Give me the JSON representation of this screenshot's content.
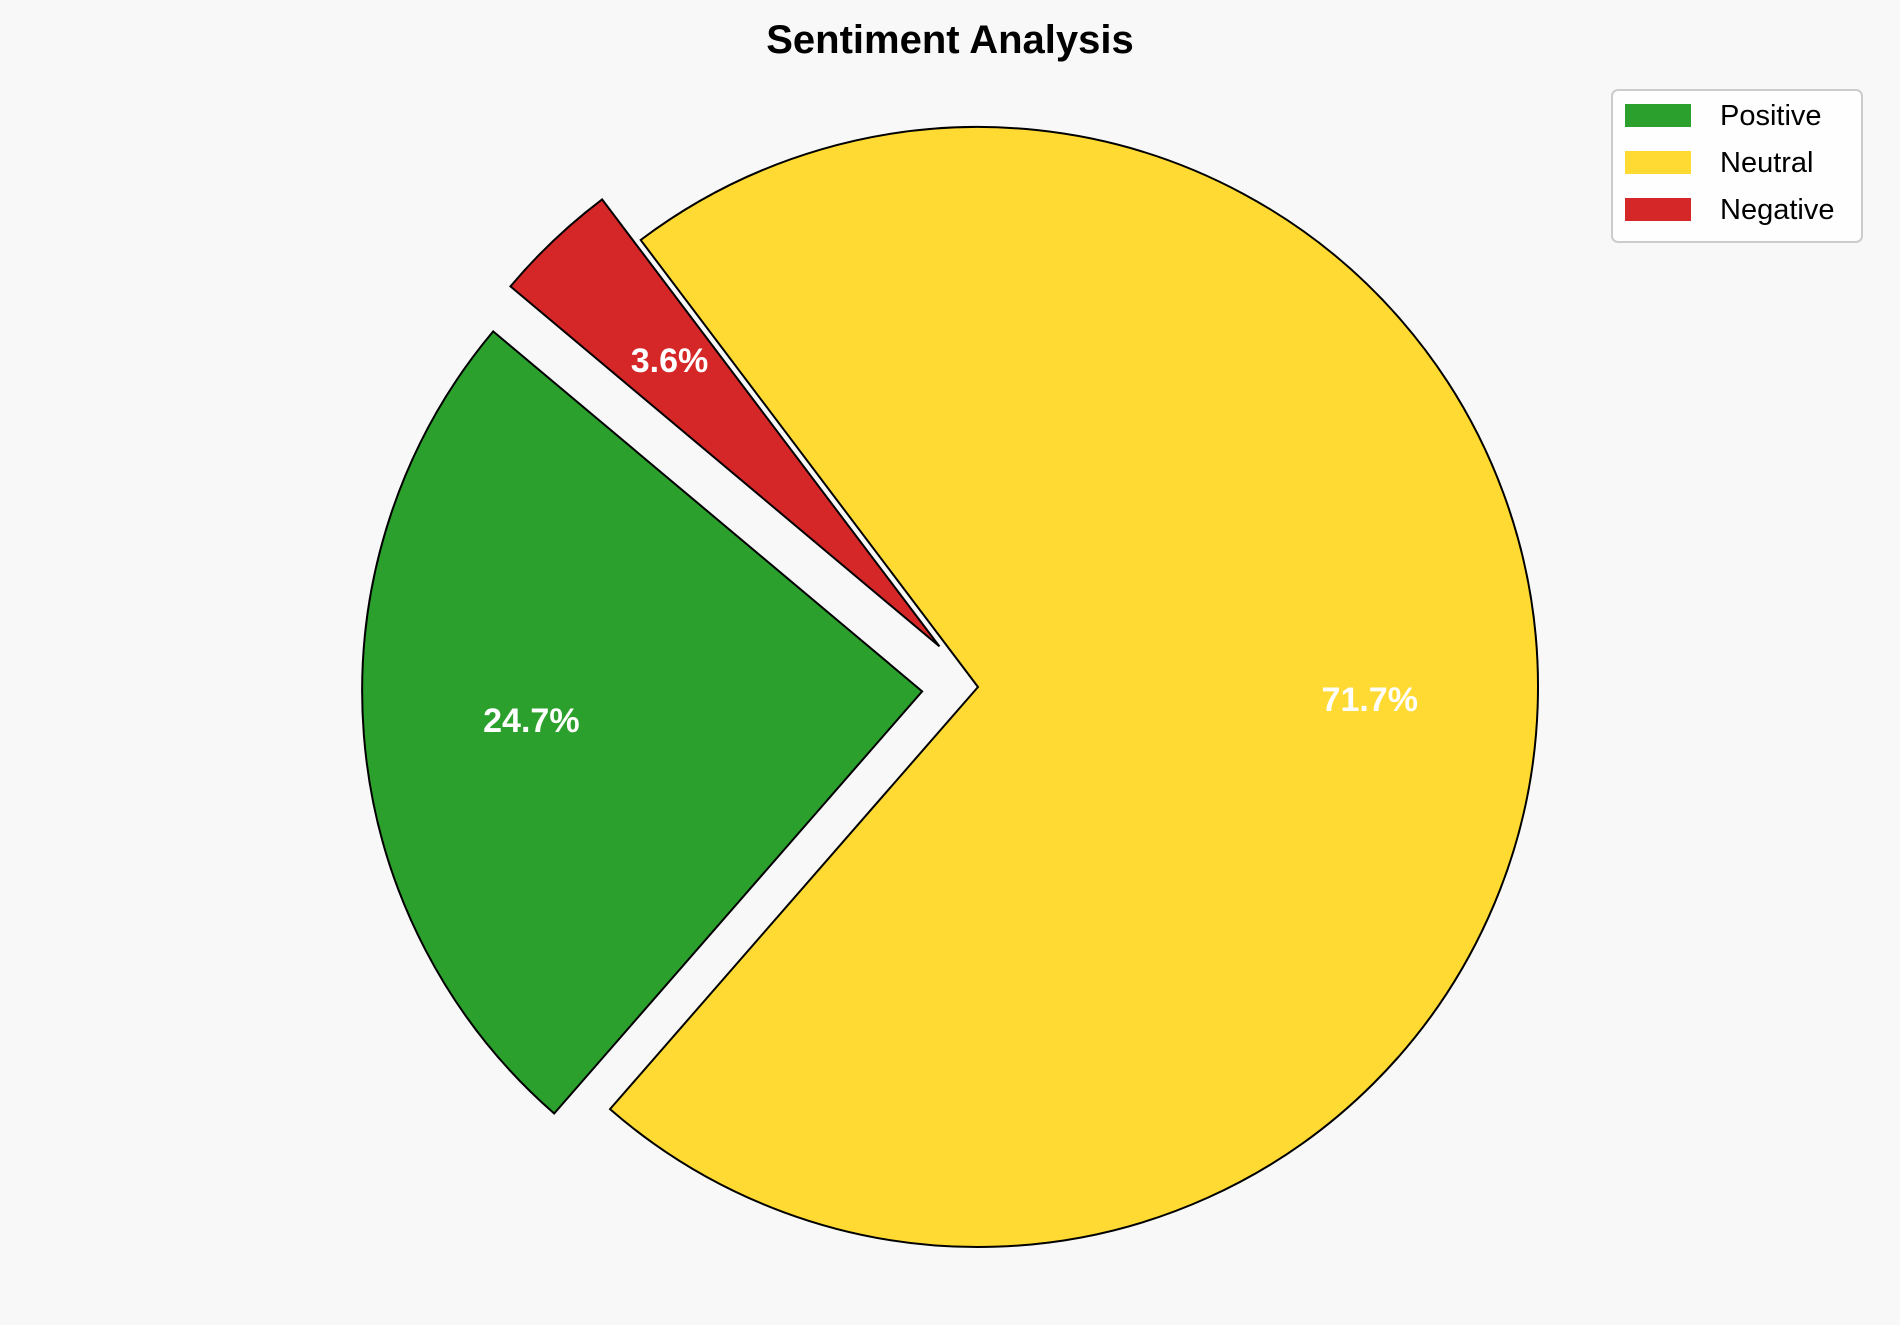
{
  "chart_data": {
    "type": "pie",
    "title": "Sentiment Analysis",
    "categories": [
      "Positive",
      "Neutral",
      "Negative"
    ],
    "values": [
      24.7,
      71.7,
      3.6
    ],
    "value_labels": [
      "24.7%",
      "71.7%",
      "3.6%"
    ],
    "colors": [
      "#2ca02c",
      "#ffda33",
      "#d62728"
    ],
    "explode": [
      0.1,
      0,
      0.1
    ],
    "start_angle_deg": 140,
    "direction": "counterclockwise",
    "label_distance": 0.7,
    "edge_color": "#000000",
    "label_color": "#ffffff",
    "legend": {
      "placement": "top-right",
      "entries": [
        "Positive",
        "Neutral",
        "Negative"
      ]
    }
  },
  "background_color": "#f8f8f8"
}
